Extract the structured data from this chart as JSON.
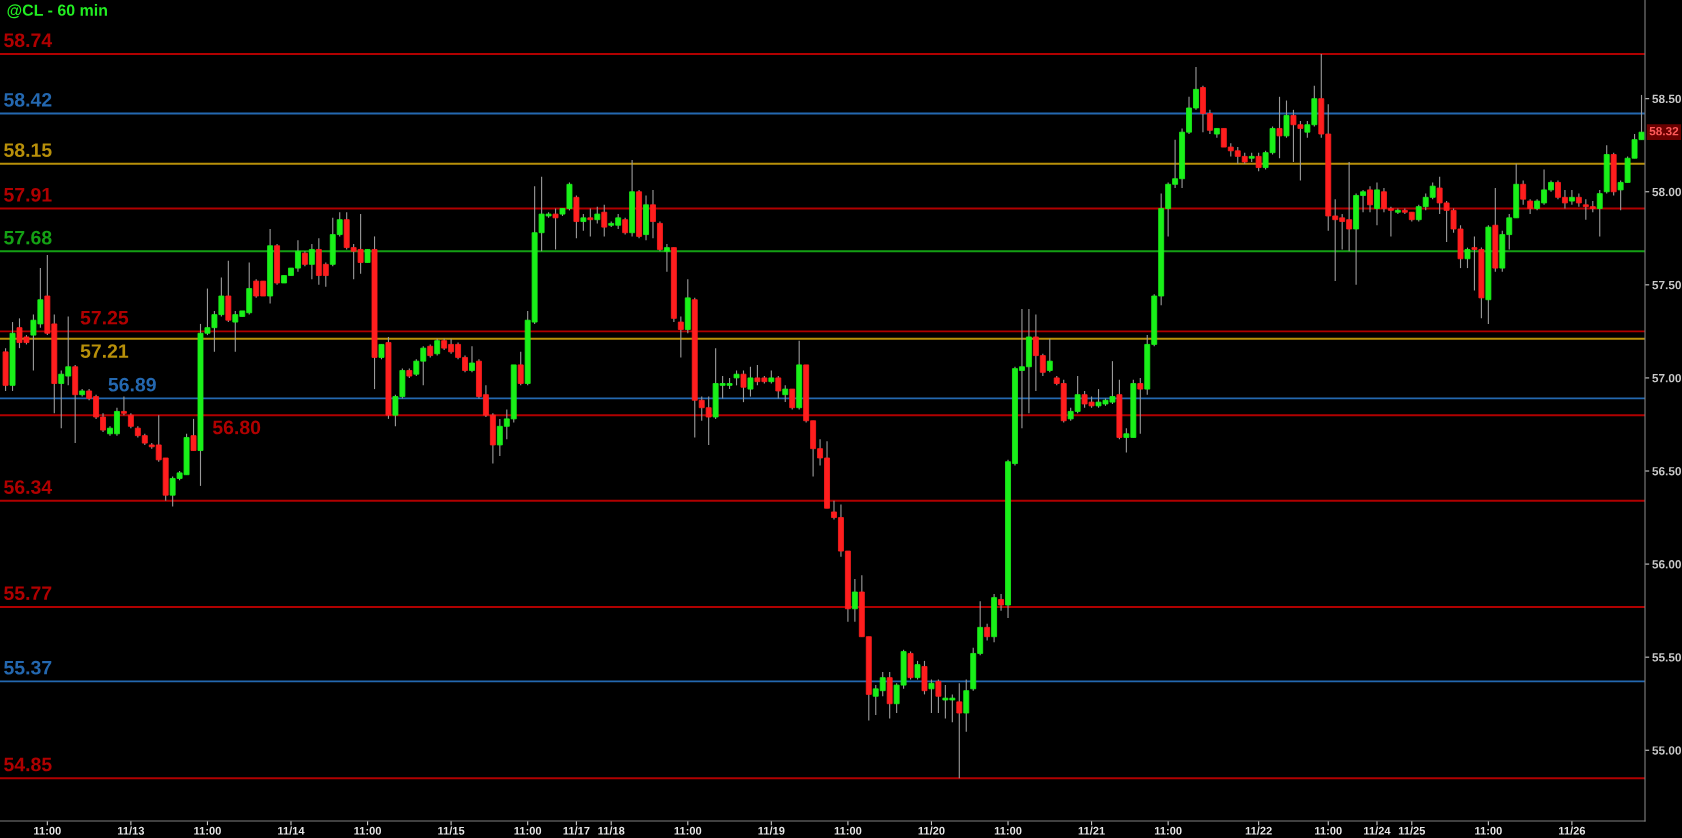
{
  "chart_data": {
    "type": "candlestick",
    "title": "@CL - 60 min",
    "categories": [
      null,
      null,
      null,
      null,
      null,
      null,
      "11:00",
      null,
      null,
      null,
      null,
      null,
      null,
      null,
      null,
      null,
      null,
      null,
      "11/13",
      null,
      null,
      null,
      null,
      null,
      null,
      null,
      null,
      null,
      null,
      "11:00",
      null,
      null,
      null,
      null,
      null,
      null,
      null,
      null,
      null,
      null,
      null,
      "11/14",
      null,
      null,
      null,
      null,
      null,
      null,
      null,
      null,
      null,
      null,
      "11:00",
      null,
      null,
      null,
      null,
      null,
      null,
      null,
      null,
      null,
      null,
      null,
      "11/15",
      null,
      null,
      null,
      null,
      null,
      null,
      null,
      null,
      null,
      null,
      "11:00",
      null,
      null,
      null,
      null,
      null,
      null,
      "11/17",
      null,
      null,
      null,
      null,
      "11/18",
      null,
      null,
      null,
      null,
      null,
      null,
      null,
      null,
      null,
      null,
      "11:00",
      null,
      null,
      null,
      null,
      null,
      null,
      null,
      null,
      null,
      null,
      null,
      "11/19",
      null,
      null,
      null,
      null,
      null,
      null,
      null,
      null,
      null,
      null,
      "11:00",
      null,
      null,
      null,
      null,
      null,
      null,
      null,
      null,
      null,
      null,
      null,
      "11/20",
      null,
      null,
      null,
      null,
      null,
      null,
      null,
      null,
      null,
      null,
      "11:00",
      null,
      null,
      null,
      null,
      null,
      null,
      null,
      null,
      null,
      null,
      null,
      "11/21",
      null,
      null,
      null,
      null,
      null,
      null,
      null,
      null,
      null,
      null,
      "11:00",
      null,
      null,
      null,
      null,
      null,
      null,
      null,
      null,
      null,
      null,
      null,
      null,
      "11/22",
      null,
      null,
      null,
      null,
      null,
      null,
      null,
      null,
      null,
      "11:00",
      null,
      null,
      null,
      null,
      null,
      null,
      "11/24",
      null,
      null,
      null,
      null,
      "11/25",
      null,
      null,
      null,
      null,
      null,
      null,
      null,
      null,
      null,
      null,
      "11:00",
      null,
      null,
      null,
      null,
      null,
      null,
      null,
      null,
      null,
      null,
      null,
      "11/26",
      null,
      null,
      null,
      null,
      null,
      null,
      null,
      null,
      null,
      null
    ],
    "ohlc": [
      [
        57.14,
        57.16,
        56.93,
        56.96
      ],
      [
        56.96,
        57.3,
        56.93,
        57.24
      ],
      [
        57.27,
        57.32,
        57.16,
        57.19
      ],
      [
        57.22,
        57.23,
        57.18,
        57.19
      ],
      [
        57.23,
        57.34,
        57.04,
        57.31
      ],
      [
        57.29,
        57.59,
        57.27,
        57.42
      ],
      [
        57.44,
        57.66,
        57.23,
        57.24
      ],
      [
        57.29,
        57.34,
        56.81,
        56.97
      ],
      [
        56.97,
        57.04,
        56.73,
        57.02
      ],
      [
        57.01,
        57.33,
        56.96,
        57.06
      ],
      [
        57.06,
        57.07,
        56.65,
        56.91
      ],
      [
        56.91,
        56.94,
        56.9,
        56.93
      ],
      [
        56.93,
        56.94,
        56.88,
        56.89
      ],
      [
        56.9,
        56.91,
        56.78,
        56.79
      ],
      [
        56.79,
        56.81,
        56.71,
        56.72
      ],
      [
        56.7,
        56.74,
        56.69,
        56.73
      ],
      [
        56.7,
        56.84,
        56.69,
        56.82
      ],
      [
        56.82,
        56.9,
        56.8,
        56.81
      ],
      [
        56.8,
        56.81,
        56.73,
        56.74
      ],
      [
        56.73,
        56.74,
        56.68,
        56.69
      ],
      [
        56.69,
        56.7,
        56.64,
        56.65
      ],
      [
        56.64,
        56.65,
        56.62,
        56.63
      ],
      [
        56.64,
        56.8,
        56.55,
        56.56
      ],
      [
        56.57,
        56.57,
        56.34,
        56.37
      ],
      [
        56.37,
        56.47,
        56.31,
        56.46
      ],
      [
        56.46,
        56.5,
        56.45,
        56.49
      ],
      [
        56.48,
        56.7,
        56.48,
        56.68
      ],
      [
        56.69,
        56.78,
        56.61,
        56.61
      ],
      [
        56.61,
        57.29,
        56.42,
        57.24
      ],
      [
        57.24,
        57.48,
        57.23,
        57.27
      ],
      [
        57.27,
        57.36,
        57.14,
        57.34
      ],
      [
        57.34,
        57.54,
        57.33,
        57.44
      ],
      [
        57.44,
        57.63,
        57.3,
        57.31
      ],
      [
        57.3,
        57.36,
        57.14,
        57.34
      ],
      [
        57.33,
        57.36,
        57.33,
        57.36
      ],
      [
        57.35,
        57.62,
        57.34,
        57.48
      ],
      [
        57.52,
        57.53,
        57.43,
        57.44
      ],
      [
        57.52,
        57.52,
        57.44,
        57.44
      ],
      [
        57.44,
        57.8,
        57.4,
        57.71
      ],
      [
        57.71,
        57.72,
        57.5,
        57.51
      ],
      [
        57.51,
        57.55,
        57.51,
        57.55
      ],
      [
        57.55,
        57.59,
        57.55,
        57.59
      ],
      [
        57.59,
        57.74,
        57.57,
        57.68
      ],
      [
        57.67,
        57.68,
        57.6,
        57.61
      ],
      [
        57.61,
        57.72,
        57.53,
        57.69
      ],
      [
        57.69,
        57.75,
        57.5,
        57.55
      ],
      [
        57.61,
        57.62,
        57.49,
        57.55
      ],
      [
        57.61,
        57.86,
        57.6,
        57.77
      ],
      [
        57.77,
        57.89,
        57.76,
        57.85
      ],
      [
        57.85,
        57.89,
        57.69,
        57.7
      ],
      [
        57.7,
        57.72,
        57.53,
        57.68
      ],
      [
        57.69,
        57.88,
        57.56,
        57.62
      ],
      [
        57.62,
        57.69,
        57.62,
        57.69
      ],
      [
        57.69,
        57.76,
        56.94,
        57.11
      ],
      [
        57.11,
        57.18,
        57.1,
        57.18
      ],
      [
        57.19,
        57.22,
        56.78,
        56.8
      ],
      [
        56.8,
        56.91,
        56.74,
        56.9
      ],
      [
        56.9,
        57.05,
        56.89,
        57.04
      ],
      [
        57.04,
        57.05,
        57.0,
        57.01
      ],
      [
        57.02,
        57.1,
        57.01,
        57.09
      ],
      [
        57.09,
        57.17,
        56.96,
        57.16
      ],
      [
        57.17,
        57.18,
        57.11,
        57.12
      ],
      [
        57.13,
        57.21,
        57.12,
        57.2
      ],
      [
        57.2,
        57.21,
        57.15,
        57.16
      ],
      [
        57.18,
        57.21,
        57.13,
        57.14
      ],
      [
        57.18,
        57.19,
        57.1,
        57.11
      ],
      [
        57.11,
        57.12,
        57.03,
        57.04
      ],
      [
        57.04,
        57.17,
        57.03,
        57.08
      ],
      [
        57.09,
        57.1,
        56.89,
        56.9
      ],
      [
        56.91,
        56.96,
        56.79,
        56.8
      ],
      [
        56.8,
        56.81,
        56.54,
        56.64
      ],
      [
        56.64,
        56.78,
        56.58,
        56.74
      ],
      [
        56.74,
        56.83,
        56.67,
        56.78
      ],
      [
        56.78,
        57.07,
        56.76,
        57.07
      ],
      [
        57.07,
        57.14,
        56.96,
        56.97
      ],
      [
        56.97,
        57.36,
        56.96,
        57.31
      ],
      [
        57.3,
        58.03,
        57.29,
        57.78
      ],
      [
        57.78,
        58.08,
        57.68,
        57.88
      ],
      [
        57.87,
        57.89,
        57.86,
        57.88
      ],
      [
        57.88,
        57.91,
        57.69,
        57.86
      ],
      [
        57.88,
        57.91,
        57.87,
        57.91
      ],
      [
        57.91,
        58.05,
        57.9,
        58.04
      ],
      [
        57.97,
        57.98,
        57.75,
        57.84
      ],
      [
        57.84,
        57.88,
        57.79,
        57.86
      ],
      [
        57.86,
        57.91,
        57.76,
        57.85
      ],
      [
        57.85,
        57.92,
        57.83,
        57.88
      ],
      [
        57.89,
        57.93,
        57.76,
        57.81
      ],
      [
        57.82,
        57.84,
        57.81,
        57.83
      ],
      [
        57.82,
        57.88,
        57.8,
        57.86
      ],
      [
        57.85,
        57.86,
        57.77,
        57.78
      ],
      [
        57.78,
        58.17,
        57.76,
        58.0
      ],
      [
        58.0,
        58.01,
        57.75,
        57.76
      ],
      [
        57.77,
        57.98,
        57.74,
        57.93
      ],
      [
        57.93,
        58.01,
        57.75,
        57.84
      ],
      [
        57.83,
        57.84,
        57.68,
        57.69
      ],
      [
        57.68,
        57.72,
        57.57,
        57.7
      ],
      [
        57.7,
        57.7,
        57.3,
        57.32
      ],
      [
        57.3,
        57.33,
        57.11,
        57.26
      ],
      [
        57.26,
        57.53,
        57.24,
        57.43
      ],
      [
        57.42,
        57.43,
        56.68,
        56.88
      ],
      [
        56.88,
        56.9,
        56.77,
        56.84
      ],
      [
        56.84,
        56.9,
        56.64,
        56.79
      ],
      [
        56.79,
        57.16,
        56.78,
        56.97
      ],
      [
        56.96,
        57.01,
        56.89,
        56.97
      ],
      [
        56.96,
        57.0,
        56.94,
        56.97
      ],
      [
        57.0,
        57.04,
        56.96,
        57.02
      ],
      [
        57.02,
        57.04,
        56.87,
        56.95
      ],
      [
        56.94,
        57.06,
        56.9,
        57.0
      ],
      [
        57.0,
        57.07,
        56.96,
        56.98
      ],
      [
        57.0,
        57.01,
        56.97,
        56.98
      ],
      [
        56.98,
        57.04,
        56.97,
        57.0
      ],
      [
        57.0,
        57.01,
        56.89,
        56.93
      ],
      [
        56.91,
        56.96,
        56.87,
        56.94
      ],
      [
        56.94,
        56.94,
        56.83,
        56.84
      ],
      [
        56.84,
        57.2,
        56.83,
        57.07
      ],
      [
        57.07,
        57.07,
        56.76,
        56.77
      ],
      [
        56.77,
        56.77,
        56.47,
        56.62
      ],
      [
        56.62,
        56.67,
        56.53,
        56.57
      ],
      [
        56.57,
        56.66,
        56.3,
        56.3
      ],
      [
        56.28,
        56.34,
        56.24,
        56.25
      ],
      [
        56.25,
        56.32,
        56.04,
        56.07
      ],
      [
        56.07,
        56.07,
        55.69,
        55.76
      ],
      [
        55.76,
        55.92,
        55.69,
        55.85
      ],
      [
        55.85,
        55.94,
        55.61,
        55.61
      ],
      [
        55.61,
        55.61,
        55.16,
        55.3
      ],
      [
        55.29,
        55.35,
        55.19,
        55.33
      ],
      [
        55.32,
        55.42,
        55.29,
        55.39
      ],
      [
        55.39,
        55.42,
        55.17,
        55.25
      ],
      [
        55.25,
        55.36,
        55.2,
        55.35
      ],
      [
        55.35,
        55.54,
        55.33,
        55.53
      ],
      [
        55.52,
        55.53,
        55.38,
        55.39
      ],
      [
        55.39,
        55.48,
        55.38,
        55.46
      ],
      [
        55.45,
        55.48,
        55.3,
        55.32
      ],
      [
        55.33,
        55.38,
        55.2,
        55.36
      ],
      [
        55.37,
        55.38,
        55.2,
        55.29
      ],
      [
        55.27,
        55.35,
        55.17,
        55.28
      ],
      [
        55.27,
        55.3,
        55.15,
        55.28
      ],
      [
        55.26,
        55.36,
        54.85,
        55.2
      ],
      [
        55.2,
        55.38,
        55.1,
        55.32
      ],
      [
        55.33,
        55.55,
        55.32,
        55.52
      ],
      [
        55.52,
        55.8,
        55.51,
        55.66
      ],
      [
        55.66,
        55.68,
        55.59,
        55.61
      ],
      [
        55.61,
        55.84,
        55.58,
        55.82
      ],
      [
        55.81,
        55.84,
        55.75,
        55.78
      ],
      [
        55.78,
        56.56,
        55.71,
        56.55
      ],
      [
        56.54,
        57.06,
        56.53,
        57.05
      ],
      [
        57.04,
        57.37,
        56.73,
        57.06
      ],
      [
        57.06,
        57.37,
        56.81,
        57.22
      ],
      [
        57.22,
        57.34,
        56.93,
        57.12
      ],
      [
        57.12,
        57.13,
        57.01,
        57.03
      ],
      [
        57.04,
        57.21,
        57.03,
        57.09
      ],
      [
        57.0,
        57.01,
        56.96,
        56.97
      ],
      [
        56.97,
        56.99,
        56.76,
        56.77
      ],
      [
        56.78,
        56.84,
        56.77,
        56.82
      ],
      [
        56.82,
        57.01,
        56.81,
        56.91
      ],
      [
        56.91,
        56.93,
        56.84,
        56.86
      ],
      [
        56.87,
        56.9,
        56.84,
        56.85
      ],
      [
        56.85,
        56.94,
        56.84,
        56.87
      ],
      [
        56.86,
        56.89,
        56.85,
        56.88
      ],
      [
        56.87,
        57.09,
        56.86,
        56.9
      ],
      [
        56.91,
        56.99,
        56.67,
        56.68
      ],
      [
        56.68,
        56.73,
        56.6,
        56.7
      ],
      [
        56.68,
        56.99,
        56.68,
        56.97
      ],
      [
        56.97,
        57.0,
        56.7,
        56.94
      ],
      [
        56.94,
        57.23,
        56.91,
        57.18
      ],
      [
        57.18,
        57.45,
        57.17,
        57.44
      ],
      [
        57.44,
        57.99,
        57.39,
        57.91
      ],
      [
        57.91,
        58.05,
        57.76,
        58.04
      ],
      [
        58.04,
        58.28,
        58.02,
        58.07
      ],
      [
        58.07,
        58.34,
        58.02,
        58.32
      ],
      [
        58.32,
        58.51,
        58.31,
        58.45
      ],
      [
        58.45,
        58.67,
        58.44,
        58.55
      ],
      [
        58.56,
        58.57,
        58.32,
        58.42
      ],
      [
        58.42,
        58.44,
        58.31,
        58.33
      ],
      [
        58.31,
        58.34,
        58.29,
        58.34
      ],
      [
        58.34,
        58.34,
        58.24,
        58.24
      ],
      [
        58.24,
        58.26,
        58.19,
        58.22
      ],
      [
        58.22,
        58.24,
        58.15,
        58.19
      ],
      [
        58.19,
        58.21,
        58.15,
        58.16
      ],
      [
        58.18,
        58.21,
        58.16,
        58.19
      ],
      [
        58.19,
        58.21,
        58.11,
        58.13
      ],
      [
        58.13,
        58.22,
        58.12,
        58.21
      ],
      [
        58.21,
        58.35,
        58.2,
        58.34
      ],
      [
        58.34,
        58.51,
        58.18,
        58.3
      ],
      [
        58.3,
        58.49,
        58.29,
        58.41
      ],
      [
        58.41,
        58.44,
        58.16,
        58.36
      ],
      [
        58.36,
        58.38,
        58.06,
        58.34
      ],
      [
        58.32,
        58.38,
        58.29,
        58.36
      ],
      [
        58.36,
        58.57,
        58.35,
        58.5
      ],
      [
        58.5,
        58.74,
        58.29,
        58.31
      ],
      [
        58.31,
        58.47,
        57.79,
        57.87
      ],
      [
        57.87,
        57.96,
        57.52,
        57.85
      ],
      [
        57.86,
        57.88,
        57.69,
        57.84
      ],
      [
        57.85,
        58.16,
        57.68,
        57.8
      ],
      [
        57.8,
        57.99,
        57.5,
        57.98
      ],
      [
        57.98,
        58.01,
        57.89,
        58.0
      ],
      [
        58.01,
        58.03,
        57.89,
        57.93
      ],
      [
        57.91,
        58.05,
        57.82,
        58.01
      ],
      [
        58.0,
        58.02,
        57.89,
        57.91
      ],
      [
        57.91,
        57.92,
        57.76,
        57.9
      ],
      [
        57.89,
        57.91,
        57.88,
        57.9
      ],
      [
        57.9,
        57.91,
        57.88,
        57.89
      ],
      [
        57.89,
        57.89,
        57.84,
        57.85
      ],
      [
        57.85,
        57.93,
        57.84,
        57.92
      ],
      [
        57.92,
        57.99,
        57.9,
        57.97
      ],
      [
        57.97,
        58.05,
        57.96,
        58.03
      ],
      [
        58.02,
        58.08,
        57.88,
        57.94
      ],
      [
        57.94,
        57.95,
        57.73,
        57.9
      ],
      [
        57.9,
        57.91,
        57.78,
        57.8
      ],
      [
        57.8,
        57.82,
        57.59,
        57.64
      ],
      [
        57.64,
        57.7,
        57.59,
        57.69
      ],
      [
        57.7,
        57.76,
        57.47,
        57.69
      ],
      [
        57.69,
        57.7,
        57.32,
        57.43
      ],
      [
        57.42,
        57.82,
        57.29,
        57.81
      ],
      [
        57.82,
        58.02,
        57.57,
        57.59
      ],
      [
        57.59,
        57.79,
        57.57,
        57.77
      ],
      [
        57.77,
        57.88,
        57.69,
        57.86
      ],
      [
        57.86,
        58.15,
        57.86,
        58.04
      ],
      [
        58.04,
        58.06,
        57.93,
        57.96
      ],
      [
        57.95,
        57.96,
        57.88,
        57.91
      ],
      [
        57.91,
        57.96,
        57.9,
        57.95
      ],
      [
        57.94,
        58.12,
        57.93,
        58.01
      ],
      [
        58.01,
        58.06,
        58.0,
        58.05
      ],
      [
        58.05,
        58.06,
        57.96,
        57.97
      ],
      [
        57.97,
        58.01,
        57.91,
        57.94
      ],
      [
        57.95,
        58.01,
        57.93,
        57.97
      ],
      [
        57.97,
        57.99,
        57.92,
        57.94
      ],
      [
        57.93,
        57.96,
        57.85,
        57.92
      ],
      [
        57.92,
        57.95,
        57.89,
        57.91
      ],
      [
        57.91,
        58.01,
        57.76,
        57.99
      ],
      [
        58.0,
        58.25,
        57.99,
        58.2
      ],
      [
        58.2,
        58.21,
        57.98,
        58.0
      ],
      [
        58.01,
        58.06,
        57.9,
        58.05
      ],
      [
        58.05,
        58.19,
        58.05,
        58.18
      ],
      [
        58.18,
        58.31,
        58.18,
        58.28
      ],
      [
        58.28,
        58.52,
        58.28,
        58.32
      ]
    ],
    "ylim": [
      54.62,
      59.03
    ],
    "yticks": [
      {
        "value": 55,
        "label": "55.00"
      },
      {
        "value": 55.5,
        "label": "55.50"
      },
      {
        "value": 56,
        "label": "56.00"
      },
      {
        "value": 56.5,
        "label": "56.50"
      },
      {
        "value": 57,
        "label": "57.00"
      },
      {
        "value": 57.5,
        "label": "57.50"
      },
      {
        "value": 58,
        "label": "58.00"
      },
      {
        "value": 58.5,
        "label": "58.50"
      }
    ],
    "ref_lines": [
      {
        "axis": "y",
        "value": 58.74,
        "label": "58.74",
        "color": "#b00000"
      },
      {
        "axis": "y",
        "value": 58.42,
        "label": "58.42",
        "color": "#2468b0"
      },
      {
        "axis": "y",
        "value": 58.15,
        "label": "58.15",
        "color": "#b8900a"
      },
      {
        "axis": "y",
        "value": 57.91,
        "label": "57.91",
        "color": "#b00000"
      },
      {
        "axis": "y",
        "value": 57.68,
        "label": "57.68",
        "color": "#14a014"
      },
      {
        "axis": "y",
        "value": 57.25,
        "label": "57.25",
        "color": "#b00000"
      },
      {
        "axis": "y",
        "value": 57.21,
        "label": "57.21",
        "color": "#b8900a"
      },
      {
        "axis": "y",
        "value": 56.89,
        "label": "56.89",
        "color": "#2468b0"
      },
      {
        "axis": "y",
        "value": 56.8,
        "label": "56.80",
        "color": "#b00000"
      },
      {
        "axis": "y",
        "value": 56.34,
        "label": "56.34",
        "color": "#b00000"
      },
      {
        "axis": "y",
        "value": 55.77,
        "label": "55.77",
        "color": "#b00000"
      },
      {
        "axis": "y",
        "value": 55.37,
        "label": "55.37",
        "color": "#2468b0"
      },
      {
        "axis": "y",
        "value": 54.85,
        "label": "54.85",
        "color": "#b00000"
      }
    ],
    "annotations": [
      {
        "text": "58.32",
        "y": 58.32
      }
    ],
    "grid": false
  }
}
